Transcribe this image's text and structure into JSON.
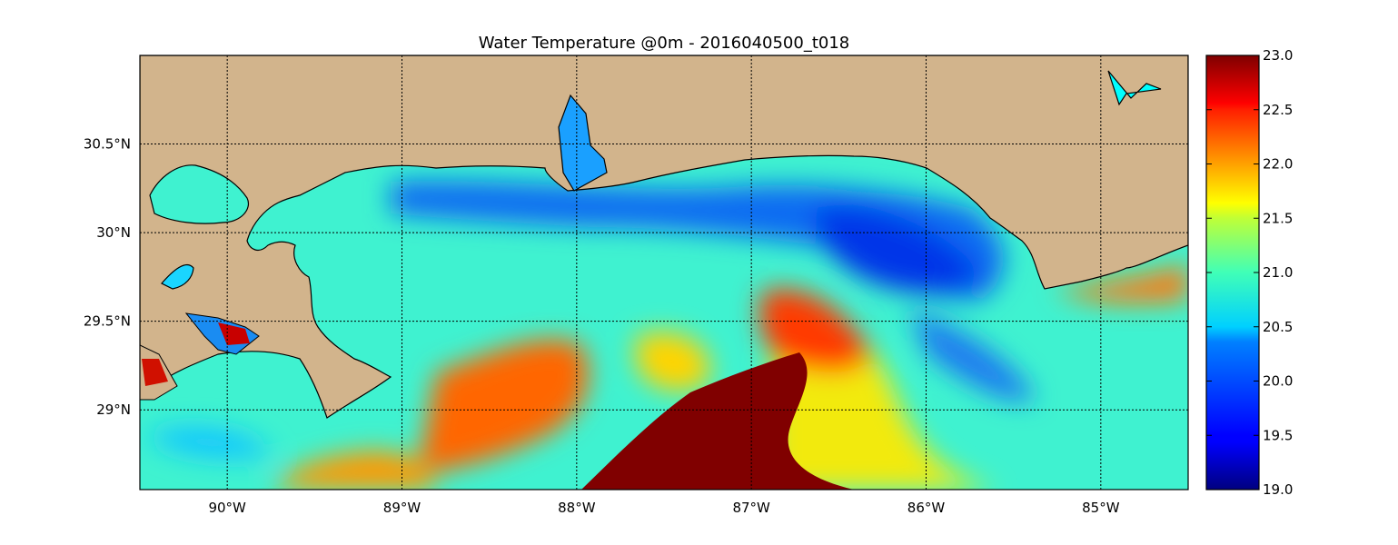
{
  "title": "Water Temperature @0m - 2016040500_t018",
  "map": {
    "lon_range": [
      -90.5,
      -84.5
    ],
    "lat_range": [
      28.55,
      31.0
    ],
    "x_ticks": [
      {
        "value": -90,
        "label": "90°W"
      },
      {
        "value": -89,
        "label": "89°W"
      },
      {
        "value": -88,
        "label": "88°W"
      },
      {
        "value": -87,
        "label": "87°W"
      },
      {
        "value": -86,
        "label": "86°W"
      },
      {
        "value": -85,
        "label": "85°W"
      }
    ],
    "y_ticks": [
      {
        "value": 30.5,
        "label": "30.5°N"
      },
      {
        "value": 30.0,
        "label": "30°N"
      },
      {
        "value": 29.5,
        "label": "29.5°N"
      },
      {
        "value": 29.0,
        "label": "29°N"
      }
    ],
    "grid": true,
    "land_color": "#d2b48c",
    "lake_color": "#00ffff"
  },
  "colorbar": {
    "colormap": "jet",
    "range": [
      19.0,
      23.0
    ],
    "ticks": [
      "19.0",
      "19.5",
      "20.0",
      "20.5",
      "21.0",
      "21.5",
      "22.0",
      "22.5",
      "23.0"
    ]
  },
  "chart_data": {
    "type": "heatmap",
    "title": "Water Temperature @0m - 2016040500_t018",
    "xlabel": "",
    "ylabel": "",
    "x_range": [
      -90.5,
      -84.5
    ],
    "y_range": [
      28.55,
      31.0
    ],
    "value_range": [
      19.0,
      23.0
    ],
    "samples": [
      {
        "lon": -87.5,
        "lat": 28.7,
        "value": 23.0
      },
      {
        "lon": -87.0,
        "lat": 29.0,
        "value": 23.0
      },
      {
        "lon": -86.6,
        "lat": 29.4,
        "value": 22.5
      },
      {
        "lon": -88.1,
        "lat": 29.0,
        "value": 22.4
      },
      {
        "lon": -88.5,
        "lat": 28.7,
        "value": 22.0
      },
      {
        "lon": -87.5,
        "lat": 29.4,
        "value": 21.6
      },
      {
        "lon": -86.0,
        "lat": 28.9,
        "value": 21.4
      },
      {
        "lon": -89.5,
        "lat": 28.8,
        "value": 20.9
      },
      {
        "lon": -86.2,
        "lat": 29.8,
        "value": 20.0
      },
      {
        "lon": -87.0,
        "lat": 30.05,
        "value": 20.2
      },
      {
        "lon": -85.2,
        "lat": 29.4,
        "value": 20.6
      },
      {
        "lon": -89.0,
        "lat": 29.7,
        "value": 20.6
      },
      {
        "lon": -84.7,
        "lat": 29.8,
        "value": 21.8
      }
    ]
  }
}
